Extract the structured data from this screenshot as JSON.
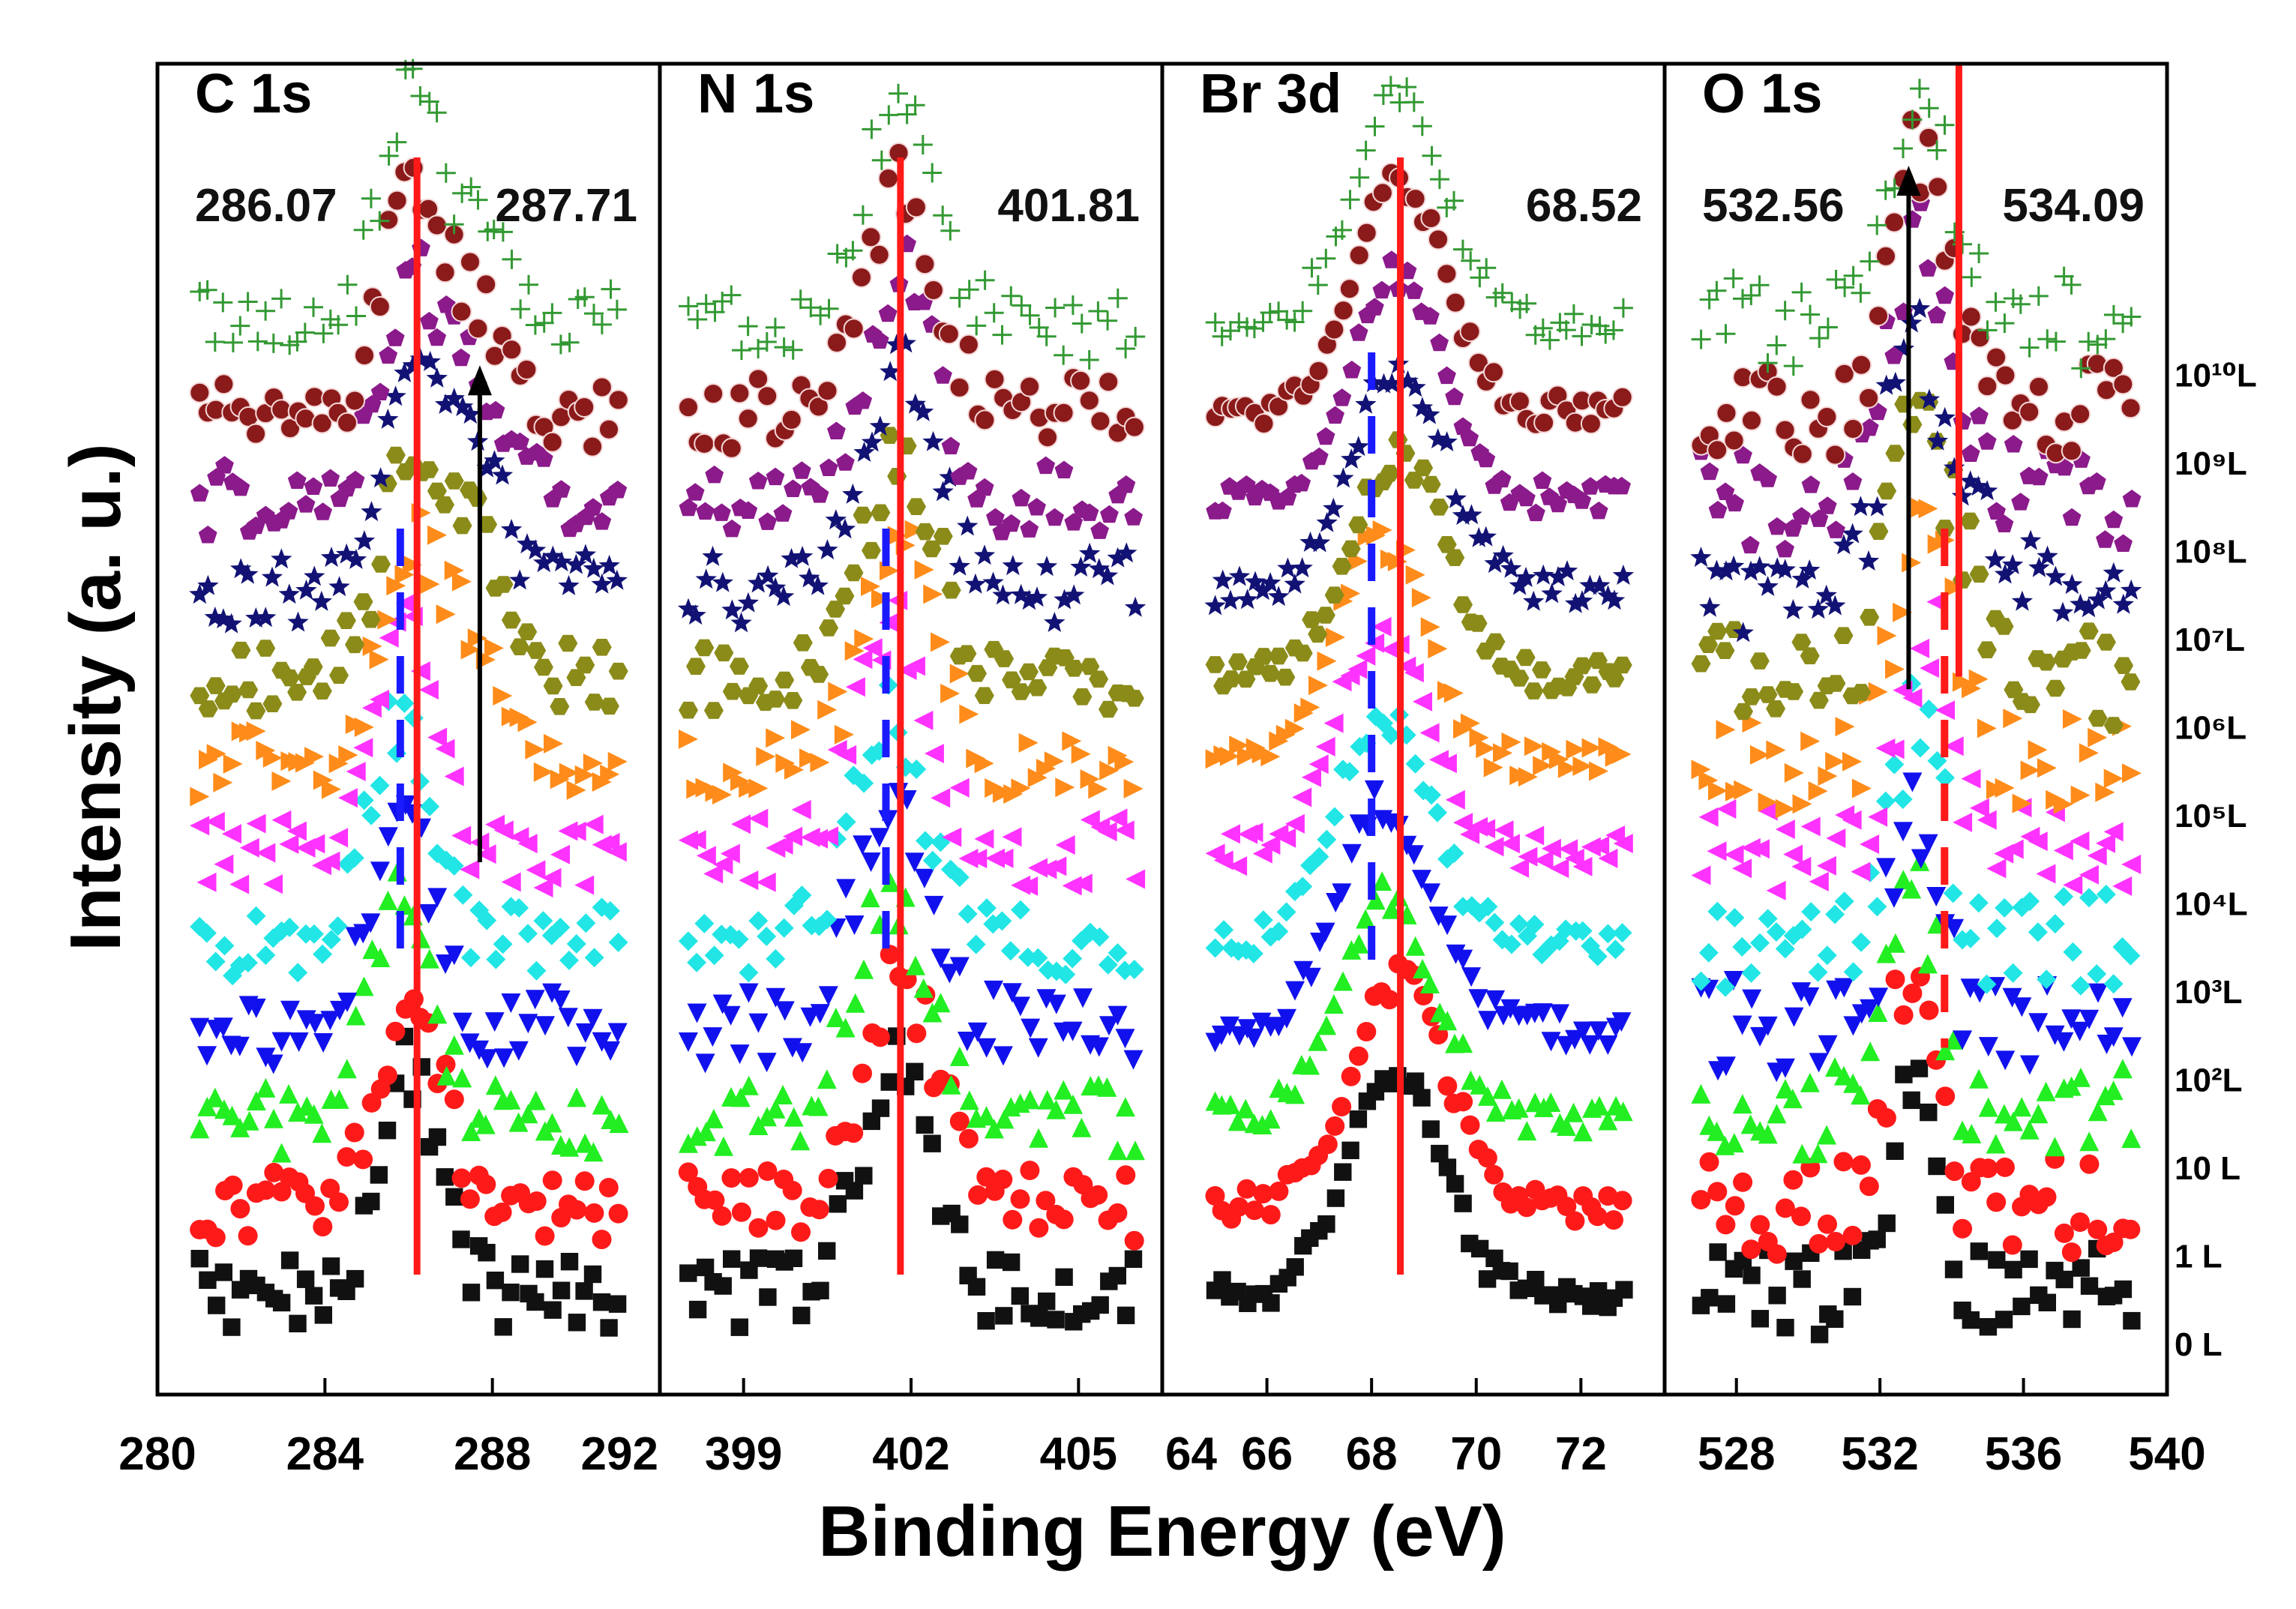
{
  "chart_data": {
    "type": "scatter",
    "xlabel": "Binding Energy (eV)",
    "ylabel": "Intensity (a. u.)",
    "series": [
      {
        "name": "0 L",
        "color": "#111111",
        "marker": "square"
      },
      {
        "name": "1 L",
        "color": "#ff1a1a",
        "marker": "circle"
      },
      {
        "name": "10 L",
        "color": "#22ee22",
        "marker": "triangle-up"
      },
      {
        "name": "10²L",
        "color": "#1111ee",
        "marker": "triangle-down"
      },
      {
        "name": "10³L",
        "color": "#22e5e5",
        "marker": "diamond"
      },
      {
        "name": "10⁴L",
        "color": "#ff33ff",
        "marker": "triangle-left"
      },
      {
        "name": "10⁵L",
        "color": "#ff8c1a",
        "marker": "triangle-right"
      },
      {
        "name": "10⁶L",
        "color": "#8b8b1a",
        "marker": "hexagon"
      },
      {
        "name": "10⁷L",
        "color": "#121275",
        "marker": "star"
      },
      {
        "name": "10⁸L",
        "color": "#8b1a8b",
        "marker": "pentagon"
      },
      {
        "name": "10⁹L",
        "color": "#8b1a1a",
        "marker": "sphere"
      },
      {
        "name": "10¹⁰L",
        "color": "#339933",
        "marker": "plus"
      }
    ],
    "panels": [
      {
        "title": "C 1s",
        "xlim": [
          280,
          292
        ],
        "xticks": [
          280,
          284,
          288,
          292
        ],
        "x_range": [
          281,
          291
        ],
        "peaks": [
          286.07,
          287.71
        ],
        "peak_labels": [
          "286.07",
          "287.71"
        ],
        "peak_label_align": [
          "start",
          "end"
        ],
        "fwhm": [
          1.7,
          1.6
        ],
        "amp2": [
          0,
          0,
          0,
          0,
          0,
          0,
          0.55,
          0.55,
          0.5,
          0.45,
          0.4,
          0.35
        ],
        "noise": 0.16,
        "peak_shift": [
          -0.05,
          0,
          -0.25,
          -0.25,
          -0.25,
          -0.25,
          0,
          0,
          0,
          0,
          0,
          0
        ],
        "red_line": {
          "x": 286.2
        },
        "blue_dash": {
          "x": 285.8,
          "from": 2,
          "to": 6
        },
        "arrow": {
          "x": 287.7,
          "from_y": 0.6,
          "to_y": 0.23
        }
      },
      {
        "title": "N 1s",
        "xlim": [
          397.5,
          406.5
        ],
        "xticks": [
          399,
          402,
          405
        ],
        "x_range": [
          398,
          406
        ],
        "peaks": [
          401.81
        ],
        "peak_labels": [
          "401.81"
        ],
        "peak_label_align": [
          "end"
        ],
        "fwhm": [
          1.5
        ],
        "amp2": [
          0,
          0,
          0,
          0,
          0,
          0,
          0,
          0,
          0,
          0,
          0,
          0
        ],
        "noise": 0.16,
        "peak_shift": [
          -0.1,
          0,
          -0.2,
          -0.2,
          -0.2,
          -0.2,
          0,
          0,
          0,
          0,
          0,
          0
        ],
        "red_line": {
          "x": 401.81
        },
        "blue_dash": {
          "x": 401.55,
          "from": 2,
          "to": 6
        }
      },
      {
        "title": "Br 3d",
        "xlim": [
          64,
          73.6
        ],
        "xticks": [
          64,
          66,
          68,
          70,
          72
        ],
        "x_range": [
          65,
          72.8
        ],
        "peaks": [
          68.52
        ],
        "peak_labels": [
          "68.52"
        ],
        "peak_label_align": [
          "end"
        ],
        "fwhm": [
          2.1
        ],
        "amp2": [
          0,
          0,
          0,
          0,
          0,
          0,
          0,
          0,
          0,
          0,
          0,
          0
        ],
        "noise": 0.08,
        "peak_shift": [
          -0.1,
          0,
          -0.25,
          -0.3,
          -0.3,
          -0.35,
          -0.3,
          0,
          0,
          0,
          0,
          0
        ],
        "red_line": {
          "x": 68.55
        },
        "blue_dash": {
          "x": 68.0,
          "from": 2,
          "to": 8
        }
      },
      {
        "title": "O 1s",
        "xlim": [
          526,
          540
        ],
        "xticks": [
          528,
          532,
          536,
          540
        ],
        "x_range": [
          527,
          539
        ],
        "peaks": [
          532.56,
          534.09
        ],
        "peak_labels": [
          "532.56",
          "534.09"
        ],
        "peak_label_align": [
          "start",
          "end"
        ],
        "fwhm": [
          1.6,
          1.8
        ],
        "amp2": [
          0,
          0,
          0,
          0,
          0,
          0,
          0.3,
          0.5,
          0.5,
          0.4,
          0.35,
          0.3
        ],
        "noise": 0.22,
        "peak_shift": [
          0.4,
          0.3,
          0.4,
          0.4,
          0.5,
          0.7,
          0.6,
          0.3,
          0.2,
          0.3,
          0.4,
          0.5
        ],
        "red_line": {
          "x": 534.2,
          "from": 7,
          "to": 11
        },
        "blue_dash": {
          "x": 533.8,
          "from": 1,
          "to": 6,
          "color": "#ff1a1a"
        },
        "arrow": {
          "x": 532.8,
          "from_y": 0.47,
          "to_y": 0.08
        }
      }
    ]
  }
}
